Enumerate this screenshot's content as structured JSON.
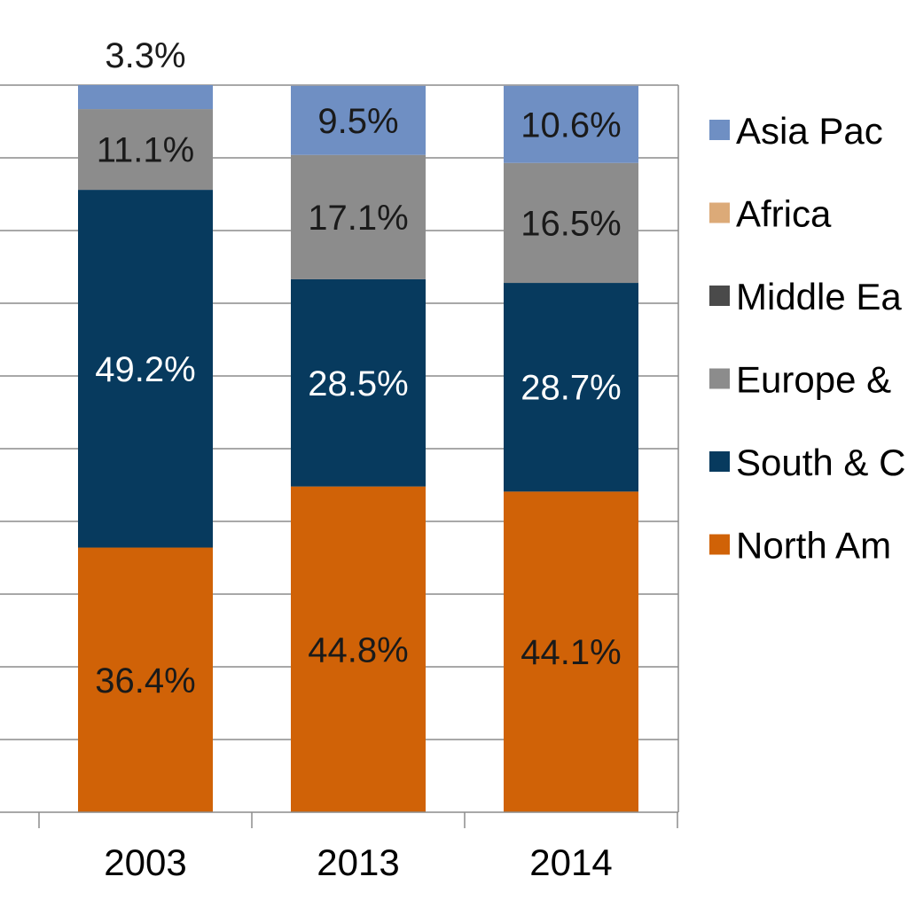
{
  "chart_data": {
    "type": "bar",
    "stacked": true,
    "categories": [
      "2003",
      "2013",
      "2014"
    ],
    "ylim": [
      0,
      100
    ],
    "grid": true,
    "legend_position": "right",
    "series": [
      {
        "name": "North America",
        "legend_text": "North Am",
        "color": "#d06207",
        "values": [
          36.4,
          44.8,
          44.1
        ],
        "labels": [
          "36.4%",
          "44.8%",
          "44.1%"
        ],
        "label_color": "#1a1a1a"
      },
      {
        "name": "South & Central America",
        "legend_text": "South & C",
        "color": "#073a5e",
        "values": [
          49.2,
          28.5,
          28.7
        ],
        "labels": [
          "49.2%",
          "28.5%",
          "28.7%"
        ],
        "label_color": "#ffffff"
      },
      {
        "name": "Europe & Eurasia",
        "legend_text": "Europe &",
        "color": "#8c8c8c",
        "values": [
          11.1,
          17.1,
          16.5
        ],
        "labels": [
          "11.1%",
          "17.1%",
          "16.5%"
        ],
        "label_color": "#1a1a1a"
      },
      {
        "name": "Middle East",
        "legend_text": "Middle Ea",
        "color": "#4a4a4a",
        "values": [
          0,
          0,
          0
        ],
        "labels": [
          "",
          "",
          ""
        ],
        "label_color": "#1a1a1a"
      },
      {
        "name": "Africa",
        "legend_text": "Africa",
        "color": "#dcaa78",
        "values": [
          0,
          0,
          0
        ],
        "labels": [
          "",
          "",
          ""
        ],
        "label_color": "#1a1a1a"
      },
      {
        "name": "Asia Pacific",
        "legend_text": "Asia Pac",
        "color": "#6f8fc3",
        "values": [
          3.3,
          9.5,
          10.6
        ],
        "labels": [
          "3.3%",
          "9.5%",
          "10.6%"
        ],
        "label_color": "#1a1a1a",
        "outside_label_for": [
          "2003"
        ]
      }
    ]
  }
}
